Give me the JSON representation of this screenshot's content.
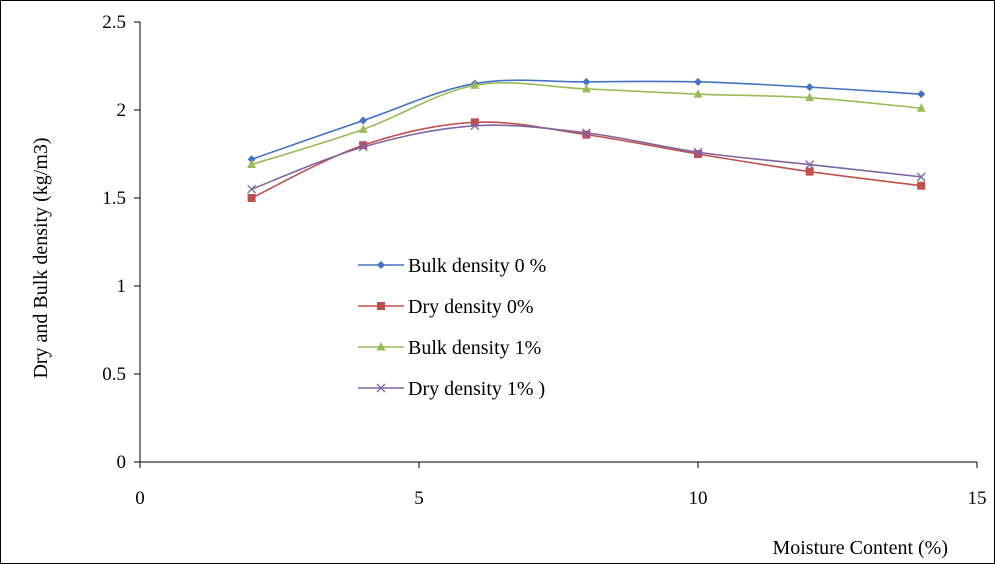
{
  "chart_data": {
    "type": "line",
    "title": "",
    "xlabel": "Moisture Content (%)",
    "ylabel": "Dry  and Bulk density (kg/m3)",
    "xlim": [
      0,
      15
    ],
    "ylim": [
      0,
      2.5
    ],
    "x_ticks": [
      "0",
      "5",
      "10",
      "15"
    ],
    "y_ticks": [
      "0",
      "0.5",
      "1",
      "1.5",
      "2",
      "2.5"
    ],
    "grid": false,
    "legend_position": "center-left",
    "x": [
      2,
      4,
      6,
      8,
      10,
      12,
      14
    ],
    "series": [
      {
        "name": "Bulk density 0 %",
        "color": "#4472C4",
        "marker": "diamond",
        "values": [
          1.72,
          1.94,
          2.15,
          2.16,
          2.16,
          2.13,
          2.09
        ]
      },
      {
        "name": "Dry density 0%",
        "color": "#C0504D",
        "marker": "square",
        "values": [
          1.5,
          1.8,
          1.93,
          1.86,
          1.75,
          1.65,
          1.57
        ]
      },
      {
        "name": "Bulk density 1%",
        "color": "#9BBB59",
        "marker": "triangle",
        "values": [
          1.69,
          1.89,
          2.14,
          2.12,
          2.09,
          2.07,
          2.01
        ]
      },
      {
        "name": "Dry density 1% )",
        "color": "#8064A2",
        "marker": "x",
        "values": [
          1.55,
          1.79,
          1.91,
          1.87,
          1.76,
          1.69,
          1.62
        ]
      }
    ]
  }
}
